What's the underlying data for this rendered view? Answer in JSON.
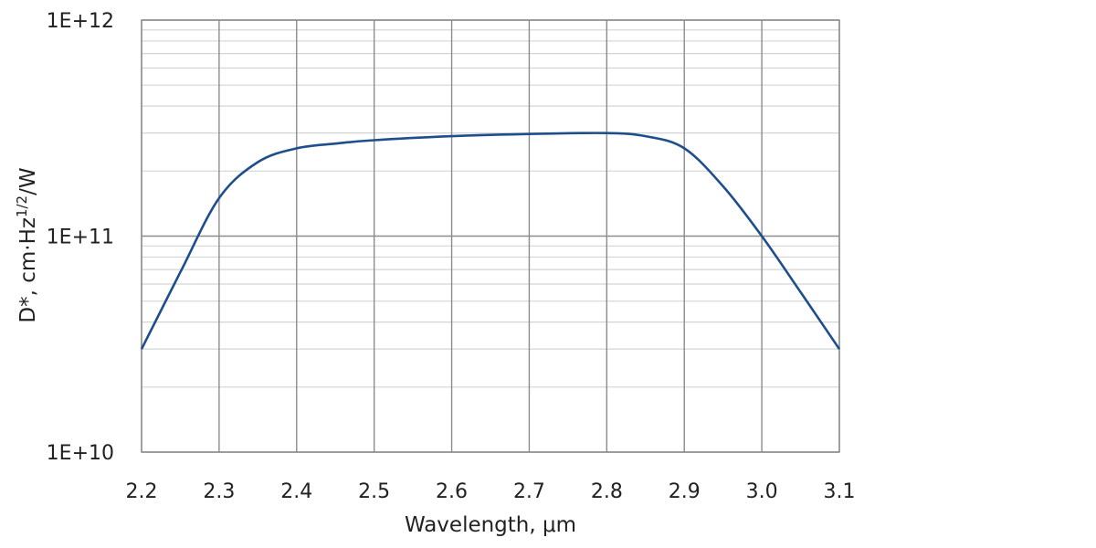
{
  "chart_data": {
    "type": "line",
    "title": "",
    "xlabel": "Wavelength, μm",
    "ylabel_main": "D*, cm·Hz",
    "ylabel_sup": "1/2",
    "ylabel_tail": "/W",
    "x_ticks": [
      "2.2",
      "2.3",
      "2.4",
      "2.5",
      "2.6",
      "2.7",
      "2.8",
      "2.9",
      "3.0",
      "3.1"
    ],
    "y_ticks": [
      "1E+10",
      "1E+11",
      "1E+12"
    ],
    "xlim": [
      2.2,
      3.1
    ],
    "ylim": [
      10000000000.0,
      1000000000000.0
    ],
    "y_scale": "log",
    "grid": true,
    "line_color": "#1f4e8c",
    "series": [
      {
        "x": [
          2.2,
          2.25,
          2.3,
          2.35,
          2.4,
          2.45,
          2.5,
          2.6,
          2.7,
          2.8,
          2.85,
          2.9,
          2.95,
          3.0,
          3.05,
          3.1
        ],
        "y": [
          30000000000.0,
          68000000000.0,
          150000000000.0,
          220000000000.0,
          255000000000.0,
          268000000000.0,
          278000000000.0,
          290000000000.0,
          297000000000.0,
          300000000000.0,
          290000000000.0,
          255000000000.0,
          170000000000.0,
          100000000000.0,
          55000000000.0,
          30000000000.0
        ]
      }
    ]
  }
}
